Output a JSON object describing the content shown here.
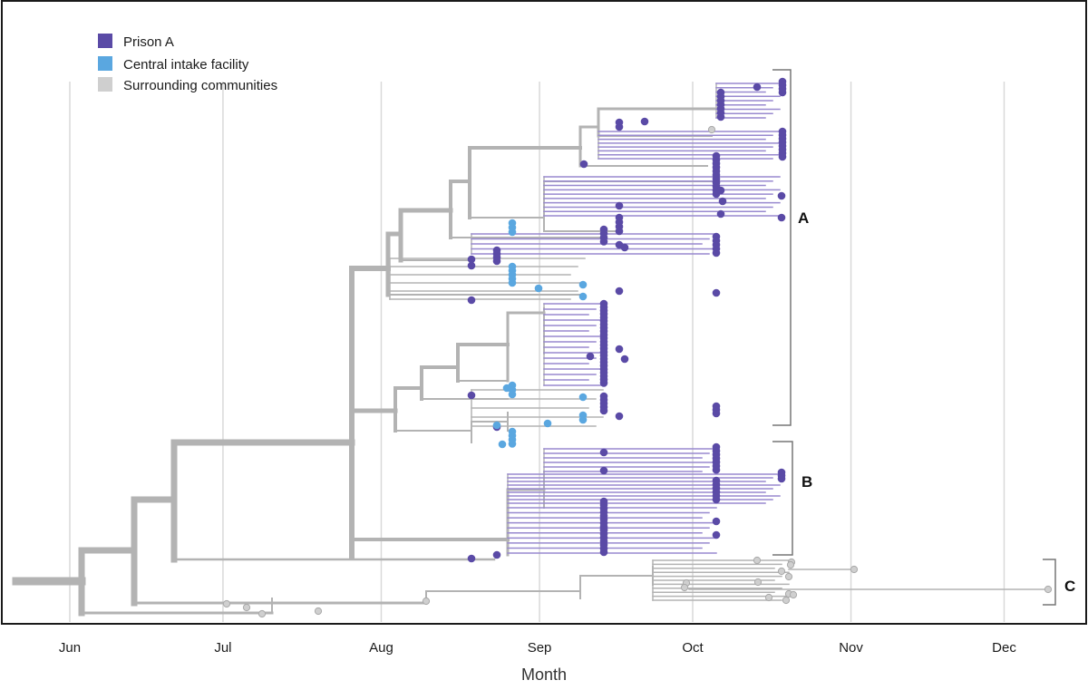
{
  "chart_data": {
    "type": "phylogenetic-tree",
    "title": "",
    "xlabel": "Month",
    "ylabel": "",
    "x_unit": "day-of-year 2020",
    "xlim": [
      146,
      345
    ],
    "gridlines": true,
    "ticks": [
      {
        "label": "Jun",
        "value": 153
      },
      {
        "label": "Jul",
        "value": 183
      },
      {
        "label": "Aug",
        "value": 214
      },
      {
        "label": "Sep",
        "value": 245
      },
      {
        "label": "Oct",
        "value": 275
      },
      {
        "label": "Nov",
        "value": 306
      },
      {
        "label": "Dec",
        "value": 336
      }
    ],
    "colors": {
      "prison_a": "#5a4aa6",
      "central_intake": "#5aa7e0",
      "community": "#cfcfcf",
      "branch": "#b3b3b3",
      "prison_branch": "#9889cf"
    },
    "legend": {
      "position": "top-left",
      "items": [
        {
          "label": "Prison A",
          "key": "prison_a"
        },
        {
          "label": "Central intake facility",
          "key": "central_intake"
        },
        {
          "label": "Surrounding communities",
          "key": "community"
        }
      ]
    },
    "clades": [
      {
        "label": "A",
        "tip_count": 84,
        "dominant_group": "Prison A"
      },
      {
        "label": "B",
        "tip_count": 34,
        "dominant_group": "Prison A"
      },
      {
        "label": "C",
        "tip_count": 20,
        "dominant_group": "Surrounding communities"
      }
    ],
    "tips_by_date": {
      "prison_a": [
        228,
        229,
        232,
        232,
        236,
        242,
        250,
        254,
        258,
        264,
        275,
        280,
        282,
        286
      ],
      "central_intake": [
        233,
        236,
        241,
        245,
        252,
        254
      ],
      "community": [
        183,
        186,
        202,
        207,
        277,
        283,
        291,
        295,
        344
      ]
    }
  }
}
